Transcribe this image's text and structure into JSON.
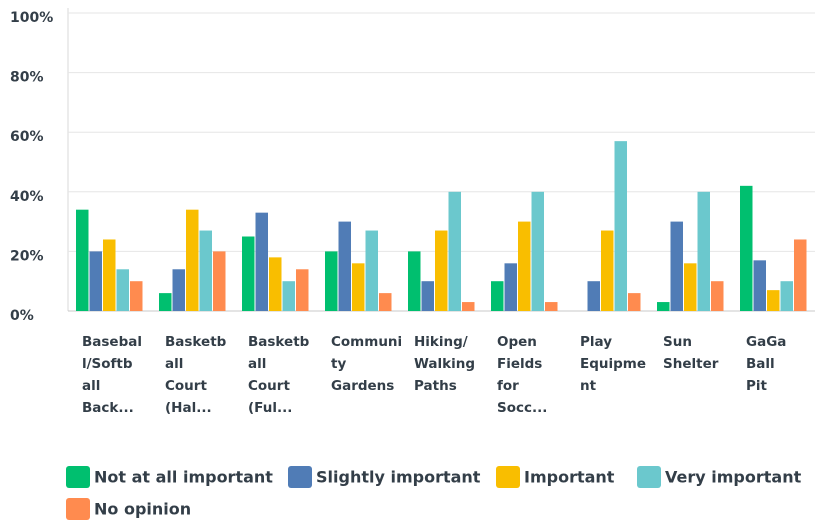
{
  "chart_data": {
    "type": "bar",
    "categories": [
      [
        "Basebal",
        "l/Softb",
        "all",
        "Back..."
      ],
      [
        "Basketb",
        "all",
        "Court",
        "(Hal..."
      ],
      [
        "Basketb",
        "all",
        "Court",
        "(Ful..."
      ],
      [
        "Communi",
        "ty",
        "Gardens"
      ],
      [
        "Hiking/",
        "Walking",
        "Paths"
      ],
      [
        "Open",
        "Fields",
        "for",
        "Socc..."
      ],
      [
        "Play",
        "Equipme",
        "nt"
      ],
      [
        "Sun",
        "Shelter"
      ],
      [
        "GaGa",
        "Ball",
        "Pit"
      ]
    ],
    "series": [
      {
        "name": "Not at all important",
        "color": "#00bf6f",
        "values": [
          34,
          6,
          25,
          20,
          20,
          10,
          0,
          3,
          42
        ]
      },
      {
        "name": "Slightly important",
        "color": "#507cb6",
        "values": [
          20,
          14,
          33,
          30,
          10,
          16,
          10,
          30,
          17
        ]
      },
      {
        "name": "Important",
        "color": "#f9be00",
        "values": [
          24,
          34,
          18,
          16,
          27,
          30,
          27,
          16,
          7
        ]
      },
      {
        "name": "Very important",
        "color": "#6bc8cd",
        "values": [
          14,
          27,
          10,
          27,
          40,
          40,
          57,
          40,
          10
        ]
      },
      {
        "name": "No opinion",
        "color": "#ff8b4f",
        "values": [
          10,
          20,
          14,
          6,
          3,
          3,
          6,
          10,
          24
        ]
      }
    ],
    "ylim": [
      0,
      100
    ],
    "yticks": [
      {
        "value": 0,
        "label": "0%"
      },
      {
        "value": 20,
        "label": "20%"
      },
      {
        "value": 40,
        "label": "40%"
      },
      {
        "value": 60,
        "label": "60%"
      },
      {
        "value": 80,
        "label": "80%"
      },
      {
        "value": 100,
        "label": "100%"
      }
    ],
    "grid": true,
    "legend": "bottom"
  }
}
